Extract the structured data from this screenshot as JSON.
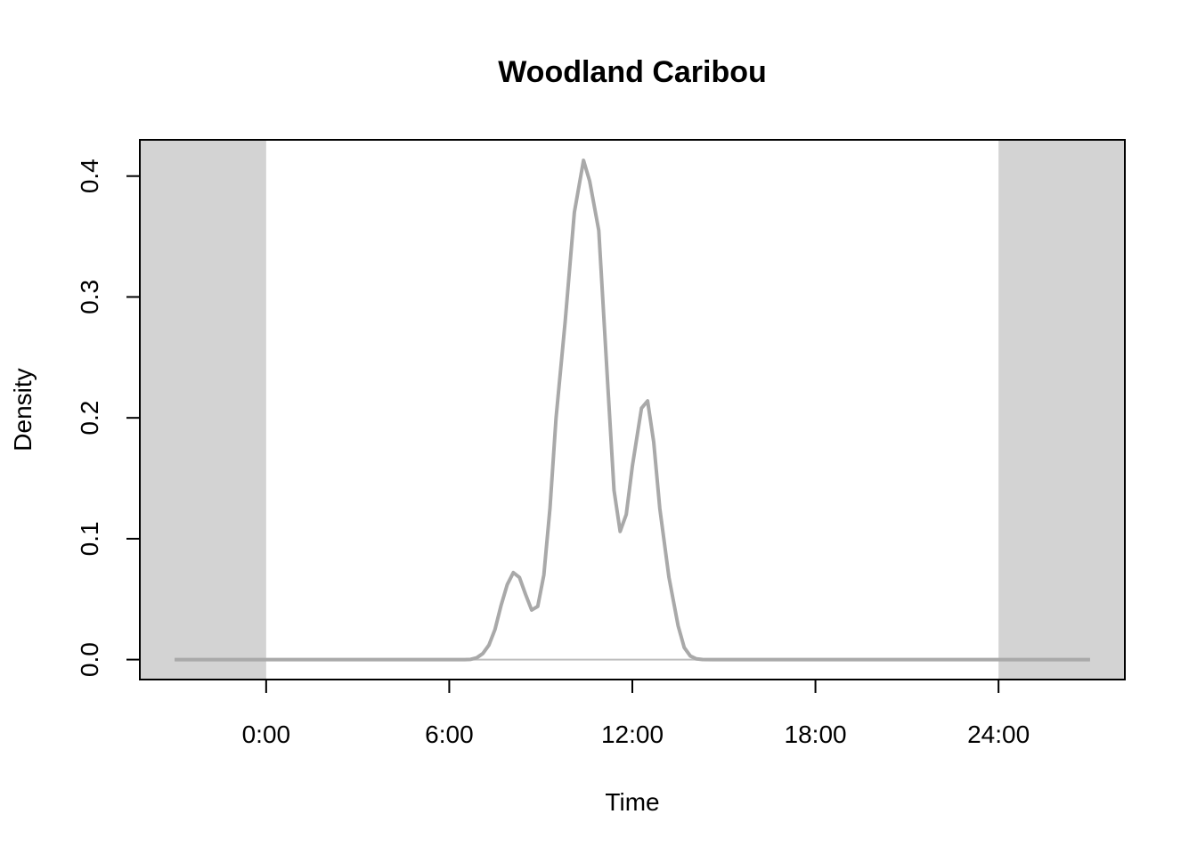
{
  "chart_data": {
    "type": "line",
    "title": "Woodland Caribou",
    "xlabel": "Time",
    "ylabel": "Density",
    "xlim": [
      -4.14,
      28.14
    ],
    "ylim": [
      -0.0165,
      0.43
    ],
    "x_ticks": [
      {
        "value": 0,
        "label": "0:00"
      },
      {
        "value": 6,
        "label": "6:00"
      },
      {
        "value": 12,
        "label": "12:00"
      },
      {
        "value": 18,
        "label": "18:00"
      },
      {
        "value": 24,
        "label": "24:00"
      }
    ],
    "y_ticks": [
      {
        "value": 0.0,
        "label": "0.0"
      },
      {
        "value": 0.1,
        "label": "0.1"
      },
      {
        "value": 0.2,
        "label": "0.2"
      },
      {
        "value": 0.3,
        "label": "0.3"
      },
      {
        "value": 0.4,
        "label": "0.4"
      }
    ],
    "shaded_ranges": [
      [
        -4.14,
        0
      ],
      [
        24,
        28.14
      ]
    ],
    "shade_color": "#d3d3d3",
    "line_color": "#a9a9a9",
    "baseline_color": "#bebebe",
    "series": [
      {
        "x": [
          -3,
          0,
          3,
          6,
          6.5,
          6.7,
          6.9,
          7.1,
          7.3,
          7.5,
          7.7,
          7.9,
          8.1,
          8.3,
          8.5,
          8.7,
          8.9,
          9.1,
          9.3,
          9.5,
          9.8,
          10.1,
          10.4,
          10.6,
          10.9,
          11.2,
          11.4,
          11.6,
          11.8,
          12.0,
          12.3,
          12.5,
          12.7,
          12.9,
          13.2,
          13.5,
          13.7,
          13.9,
          14.1,
          14.3,
          14.6,
          15.0,
          18,
          21,
          24,
          27
        ],
        "y": [
          0,
          0,
          0,
          0,
          0,
          0.0002,
          0.0015,
          0.005,
          0.012,
          0.025,
          0.045,
          0.062,
          0.072,
          0.068,
          0.054,
          0.041,
          0.044,
          0.07,
          0.125,
          0.2,
          0.28,
          0.37,
          0.413,
          0.396,
          0.355,
          0.225,
          0.14,
          0.106,
          0.12,
          0.16,
          0.208,
          0.214,
          0.18,
          0.125,
          0.068,
          0.028,
          0.01,
          0.003,
          0.0006,
          0.0001,
          0,
          0,
          0,
          0,
          0,
          0
        ]
      }
    ],
    "grid": false,
    "legend": "none"
  }
}
